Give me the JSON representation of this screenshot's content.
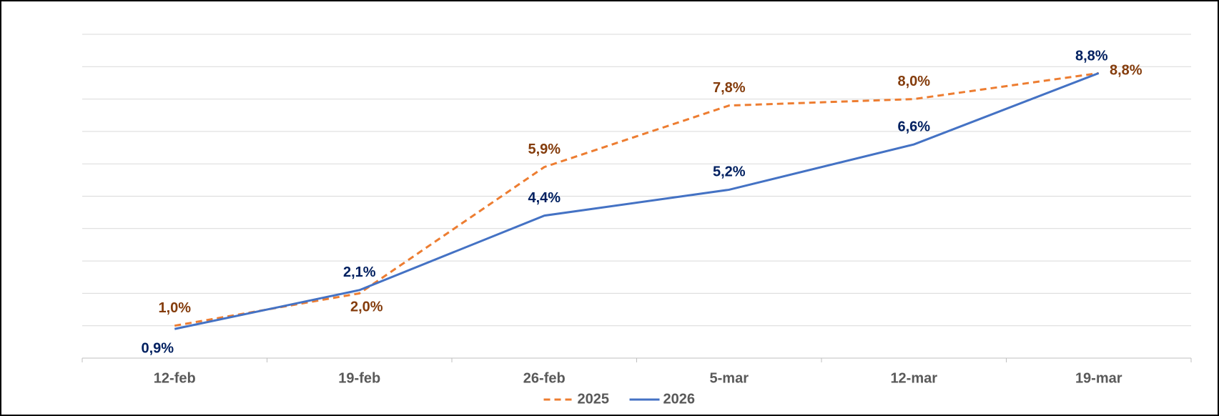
{
  "chart_data": {
    "type": "line",
    "categories": [
      "12-feb",
      "19-feb",
      "26-feb",
      "5-mar",
      "12-mar",
      "19-mar"
    ],
    "series": [
      {
        "name": "2025",
        "color": "#ED7D31",
        "label_color": "#843C0C",
        "dashed": true,
        "values": [
          1.0,
          2.0,
          5.9,
          7.8,
          8.0,
          8.8
        ],
        "value_labels": [
          "1,0%",
          "2,0%",
          "5,9%",
          "7,8%",
          "8,0%",
          "8,8%"
        ]
      },
      {
        "name": "2026",
        "color": "#4472C4",
        "label_color": "#002060",
        "dashed": false,
        "values": [
          0.9,
          2.1,
          4.4,
          5.2,
          6.6,
          8.8
        ],
        "value_labels": [
          "0,9%",
          "2,1%",
          "4,4%",
          "5,2%",
          "6,6%",
          "8,8%"
        ]
      }
    ],
    "ylim": [
      0,
      10
    ],
    "yticks": [
      0,
      1,
      2,
      3,
      4,
      5,
      6,
      7,
      8,
      9,
      10
    ],
    "grid": true,
    "legend": "bottom"
  }
}
